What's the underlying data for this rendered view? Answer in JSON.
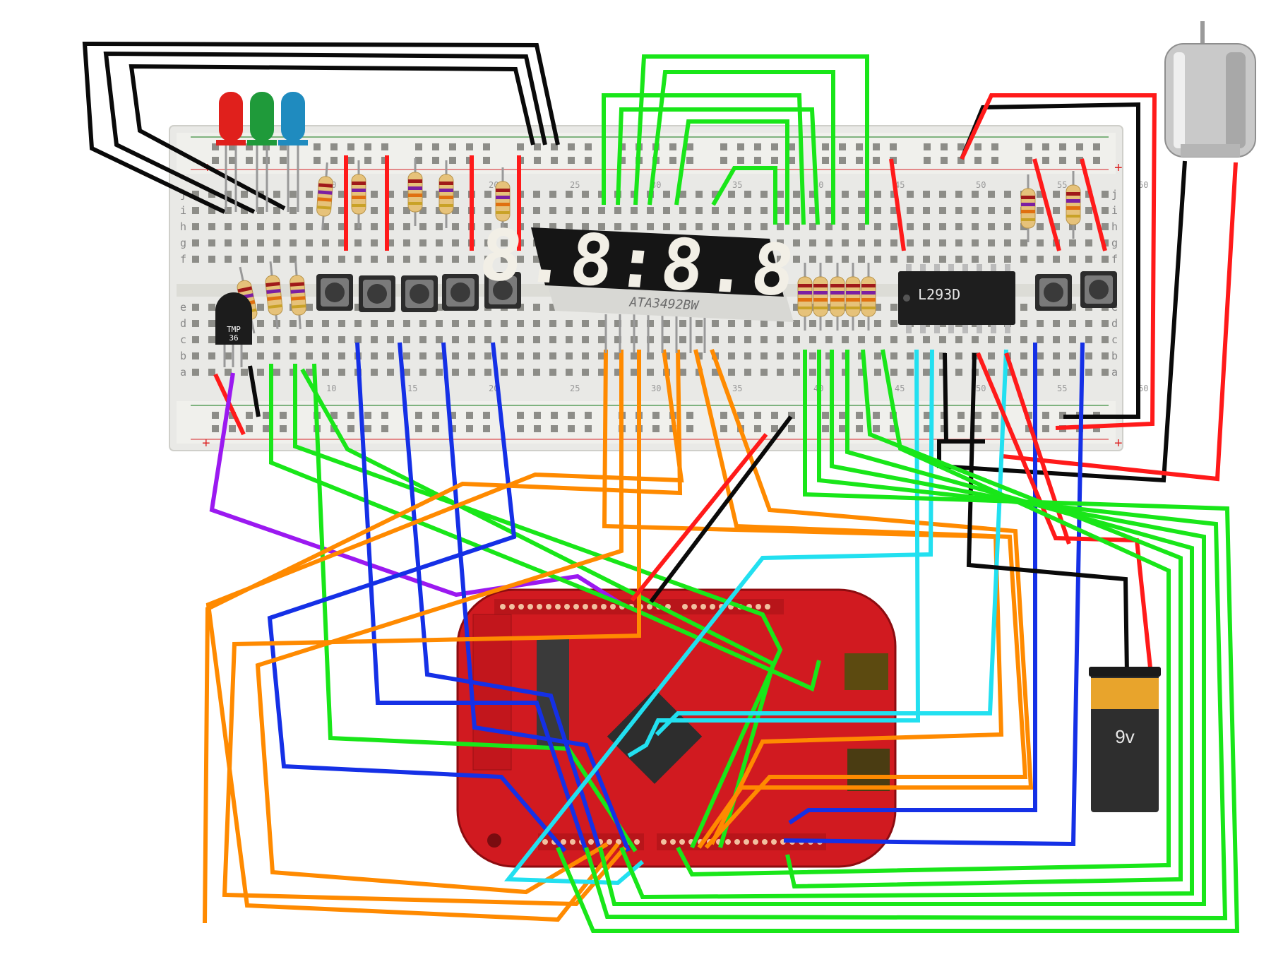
{
  "diagram": {
    "components": {
      "temperature_sensor": {
        "label": "TMP\n36",
        "line1": "TMP",
        "line2": "36"
      },
      "display": {
        "digits": "8.8:8.8",
        "part_number": "ATA3492BW"
      },
      "motor_driver": {
        "label": "L293D"
      },
      "battery": {
        "label": "9v"
      },
      "leds": [
        {
          "color": "red",
          "hex": "#e0201c"
        },
        {
          "color": "green",
          "hex": "#1f9a3a"
        },
        {
          "color": "blue",
          "hex": "#1f8bbf"
        }
      ],
      "breadboard": {
        "row_letters_top": [
          "j",
          "i",
          "h",
          "g",
          "f"
        ],
        "row_letters_bottom": [
          "e",
          "d",
          "c",
          "b",
          "a"
        ],
        "column_numbers": [
          "10",
          "15",
          "20",
          "25",
          "30",
          "35",
          "40",
          "45",
          "50",
          "55",
          "60"
        ],
        "rail_plus": "+",
        "rail_minus": "-"
      },
      "microcontroller_board": {
        "color": "#d11a20"
      },
      "dc_motor": {}
    },
    "wire_colors": {
      "black": "#0a0a0a",
      "red": "#ff1a1a",
      "green": "#19e619",
      "blue": "#1530e6",
      "orange": "#ff8a00",
      "cyan": "#22e0f0",
      "purple": "#9b19f0"
    }
  }
}
